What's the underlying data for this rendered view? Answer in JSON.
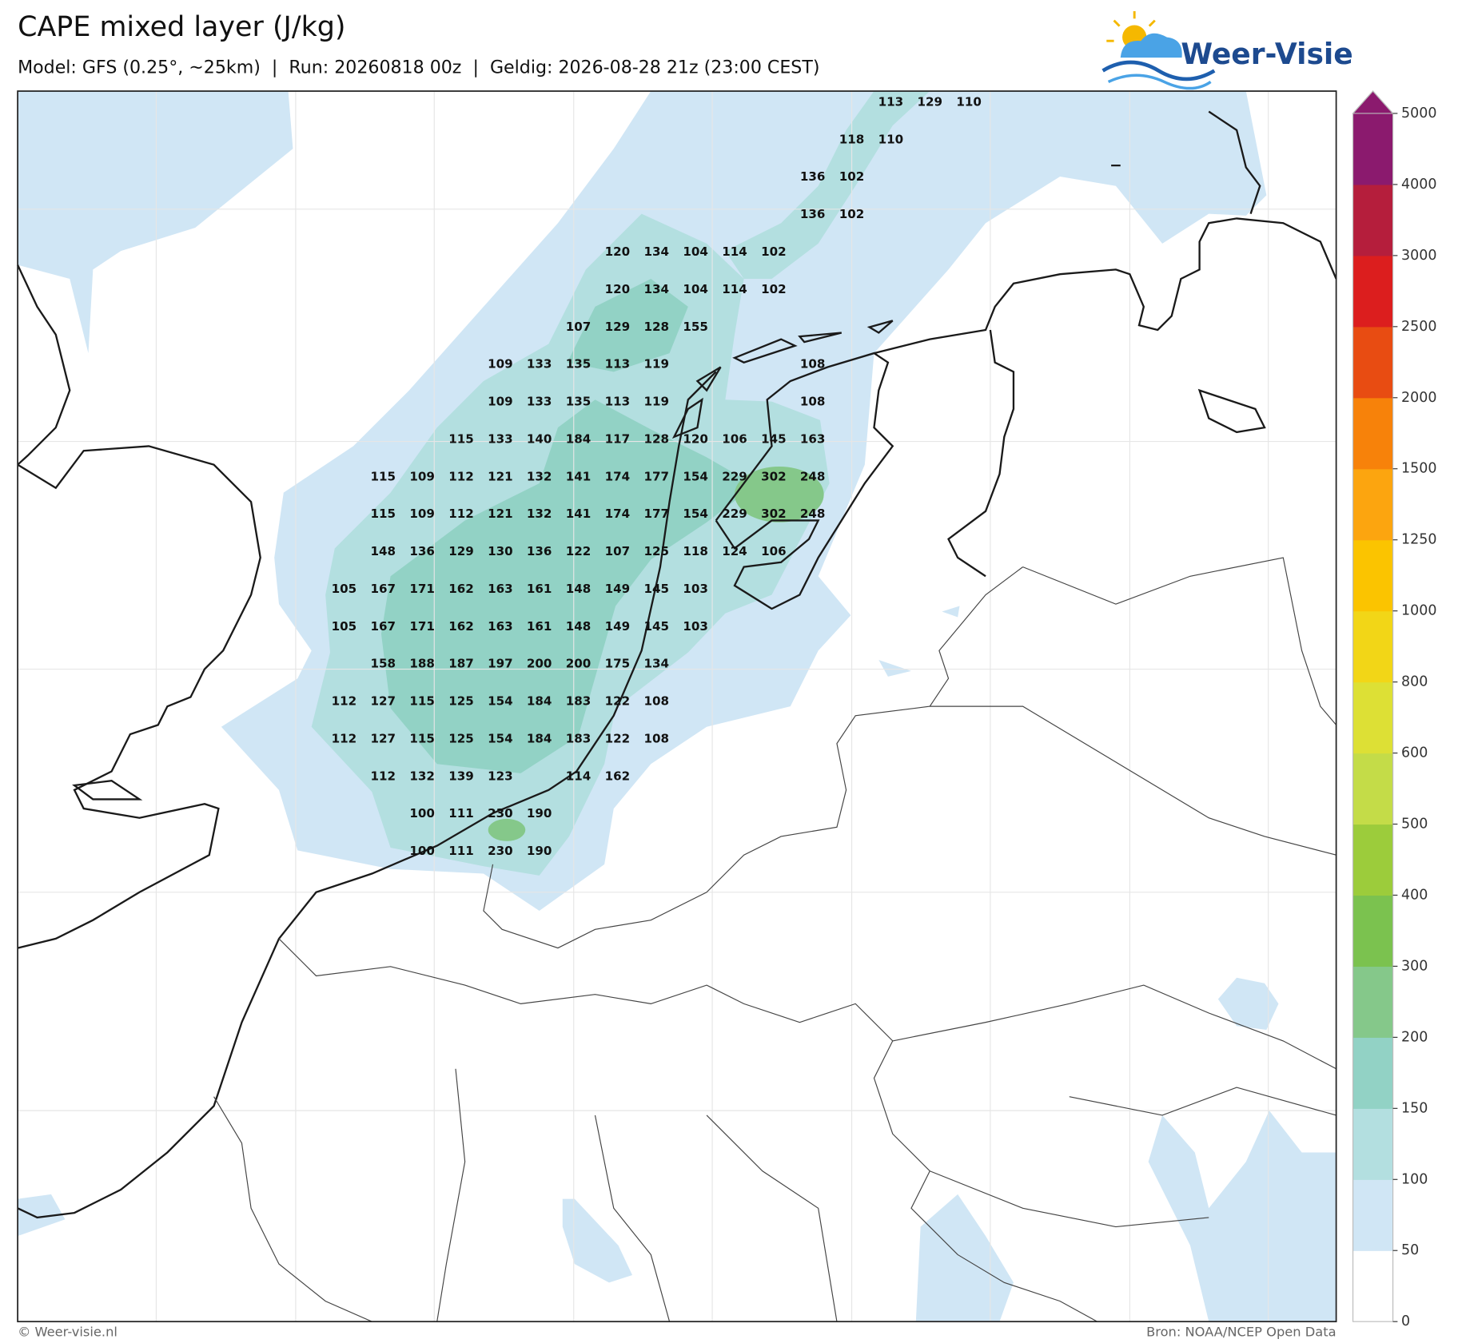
{
  "header": {
    "title": "CAPE mixed layer (J/kg)",
    "subtitle": "Model: GFS (0.25°, ~25km)  |  Run: 20260818 00z  |  Geldig: 2026-08-28 21z (23:00 CEST)",
    "logo": "Weer-Visie"
  },
  "map": {
    "grid": [
      [
        null,
        null,
        null,
        null,
        null,
        null,
        null,
        null,
        null,
        null,
        null,
        null,
        null,
        null,
        113,
        129,
        110
      ],
      [
        null,
        null,
        null,
        null,
        null,
        null,
        null,
        null,
        null,
        null,
        null,
        null,
        null,
        118,
        110,
        null,
        null
      ],
      [
        null,
        null,
        null,
        null,
        null,
        null,
        null,
        null,
        null,
        null,
        null,
        null,
        136,
        102,
        null,
        null,
        null
      ],
      [
        null,
        null,
        null,
        null,
        null,
        null,
        null,
        null,
        null,
        null,
        null,
        null,
        136,
        102,
        null,
        null,
        null
      ],
      [
        null,
        null,
        null,
        null,
        null,
        null,
        null,
        120,
        134,
        104,
        114,
        102,
        null,
        null,
        null,
        null,
        null
      ],
      [
        null,
        null,
        null,
        null,
        null,
        null,
        null,
        120,
        134,
        104,
        114,
        102,
        null,
        null,
        null,
        null,
        null
      ],
      [
        null,
        null,
        null,
        null,
        null,
        null,
        107,
        129,
        128,
        155,
        null,
        null,
        null,
        null,
        null,
        null,
        null
      ],
      [
        null,
        null,
        null,
        null,
        109,
        133,
        135,
        113,
        119,
        null,
        null,
        null,
        108,
        null,
        null,
        null,
        null
      ],
      [
        null,
        null,
        null,
        null,
        109,
        133,
        135,
        113,
        119,
        null,
        null,
        null,
        108,
        null,
        null,
        null,
        null
      ],
      [
        null,
        null,
        null,
        115,
        133,
        140,
        184,
        117,
        128,
        120,
        106,
        145,
        163,
        null,
        null,
        null,
        null
      ],
      [
        null,
        115,
        109,
        112,
        121,
        132,
        141,
        174,
        177,
        154,
        229,
        302,
        248,
        null,
        null,
        null,
        null
      ],
      [
        null,
        115,
        109,
        112,
        121,
        132,
        141,
        174,
        177,
        154,
        229,
        302,
        248,
        null,
        null,
        null,
        null
      ],
      [
        null,
        148,
        136,
        129,
        130,
        136,
        122,
        107,
        125,
        118,
        124,
        106,
        null,
        null,
        null,
        null,
        null
      ],
      [
        105,
        167,
        171,
        162,
        163,
        161,
        148,
        149,
        145,
        103,
        null,
        null,
        null,
        null,
        null,
        null,
        null
      ],
      [
        105,
        167,
        171,
        162,
        163,
        161,
        148,
        149,
        145,
        103,
        null,
        null,
        null,
        null,
        null,
        null,
        null
      ],
      [
        null,
        158,
        188,
        187,
        197,
        200,
        200,
        175,
        134,
        null,
        null,
        null,
        null,
        null,
        null,
        null,
        null
      ],
      [
        112,
        127,
        115,
        125,
        154,
        184,
        183,
        122,
        108,
        null,
        null,
        null,
        null,
        null,
        null,
        null,
        null
      ],
      [
        112,
        127,
        115,
        125,
        154,
        184,
        183,
        122,
        108,
        null,
        null,
        null,
        null,
        null,
        null,
        null,
        null
      ],
      [
        null,
        112,
        132,
        139,
        123,
        null,
        114,
        162,
        null,
        null,
        null,
        null,
        null,
        null,
        null,
        null,
        null
      ],
      [
        null,
        null,
        100,
        111,
        230,
        190,
        null,
        null,
        null,
        null,
        null,
        null,
        null,
        null,
        null,
        null,
        null
      ],
      [
        null,
        null,
        100,
        111,
        230,
        190,
        null,
        null,
        null,
        null,
        null,
        null,
        null,
        null,
        null,
        null,
        null
      ]
    ]
  },
  "colorbar": {
    "ticks": [
      0,
      50,
      100,
      150,
      200,
      300,
      400,
      500,
      600,
      800,
      1000,
      1250,
      1500,
      2000,
      2500,
      3000,
      4000,
      5000
    ],
    "colors": [
      "#ffffff",
      "#d0e6f5",
      "#b3dfe0",
      "#92d2c5",
      "#85c88a",
      "#7bc24f",
      "#9ccc3b",
      "#c4dc48",
      "#dde035",
      "#f2d617",
      "#fbc400",
      "#fca50f",
      "#f7820a",
      "#e84c12",
      "#dc1e1e",
      "#b51e3c",
      "#8b1a6e"
    ]
  },
  "footer": {
    "copyright": "© Weer-visie.nl",
    "source": "Bron: NOAA/NCEP Open Data"
  }
}
